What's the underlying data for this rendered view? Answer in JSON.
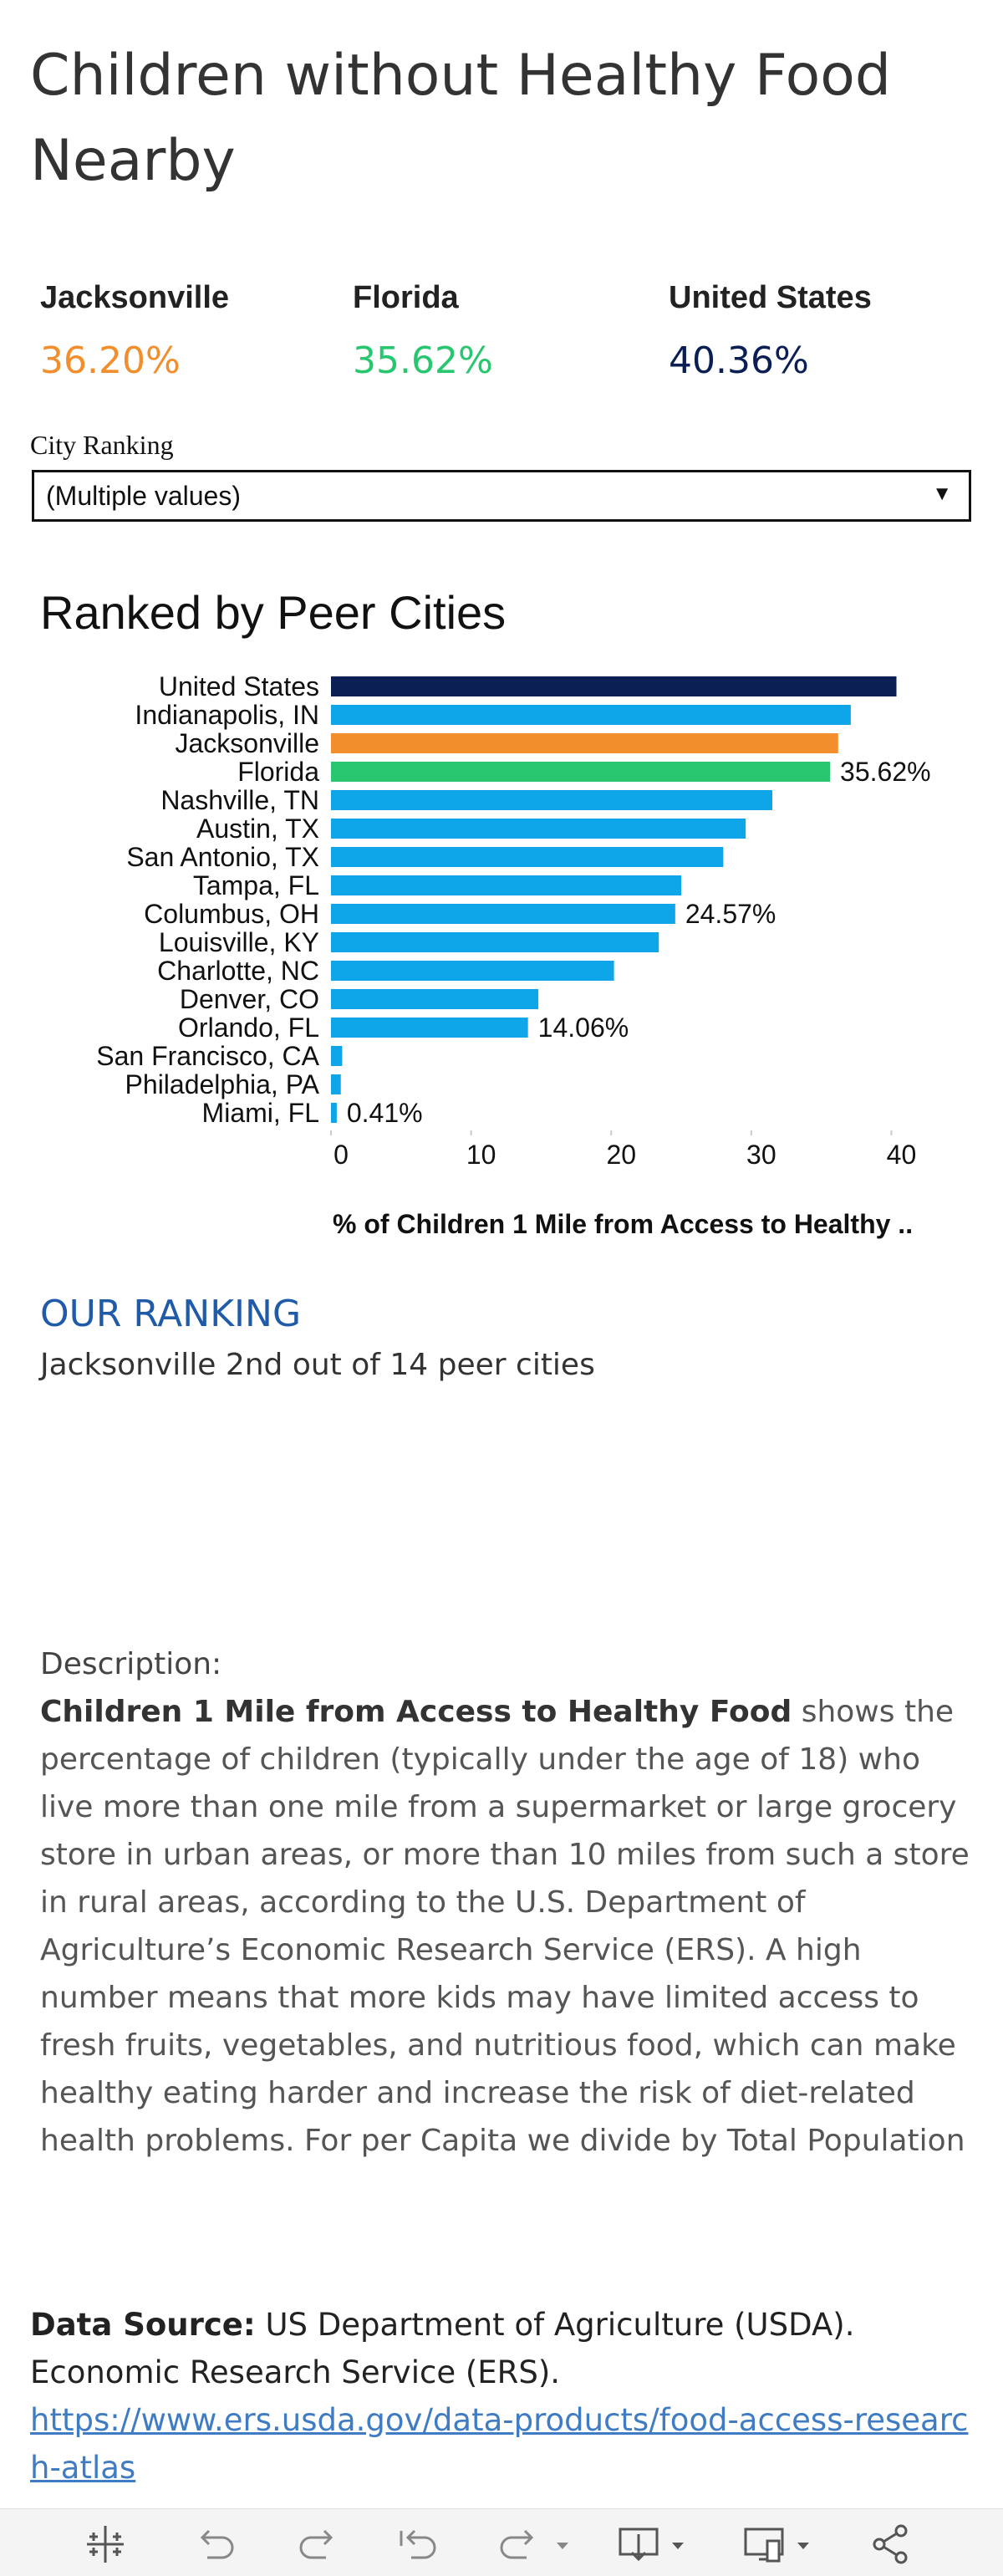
{
  "title": "Children without Healthy Food Nearby",
  "stats": [
    {
      "label": "Jacksonville",
      "value": "36.20%",
      "color": "#f28e2b"
    },
    {
      "label": "Florida",
      "value": "35.62%",
      "color": "#28c76f"
    },
    {
      "label": "United States",
      "value": "40.36%",
      "color": "#0b1f54"
    }
  ],
  "filter": {
    "label": "City Ranking",
    "value": "(Multiple values)"
  },
  "chart_title": "Ranked by Peer Cities",
  "chart_data": {
    "type": "bar",
    "orientation": "horizontal",
    "categories": [
      "United States",
      "Indianapolis, IN",
      "Jacksonville",
      "Florida",
      "Nashville, TN",
      "Austin, TX",
      "San Antonio, TX",
      "Tampa, FL",
      "Columbus, OH",
      "Louisville, KY",
      "Charlotte, NC",
      "Denver, CO",
      "Orlando, FL",
      "San Francisco, CA",
      "Philadelphia, PA",
      "Miami, FL"
    ],
    "values": [
      40.36,
      37.1,
      36.2,
      35.62,
      31.5,
      29.6,
      28.0,
      25.0,
      24.57,
      23.4,
      20.2,
      14.8,
      14.06,
      0.8,
      0.7,
      0.41
    ],
    "colors": [
      "#0b1f54",
      "#0ea5e9",
      "#f28e2b",
      "#28c76f",
      "#0ea5e9",
      "#0ea5e9",
      "#0ea5e9",
      "#0ea5e9",
      "#0ea5e9",
      "#0ea5e9",
      "#0ea5e9",
      "#0ea5e9",
      "#0ea5e9",
      "#0ea5e9",
      "#0ea5e9",
      "#0ea5e9"
    ],
    "data_labels": {
      "Florida": "35.62%",
      "Columbus, OH": "24.57%",
      "Orlando, FL": "14.06%",
      "Miami, FL": "0.41%"
    },
    "xticks": [
      0,
      10,
      20,
      30,
      40
    ],
    "xlim": [
      0,
      42
    ],
    "xlabel": "% of Children 1 Mile from Access to Healthy ..",
    "ylabel": ""
  },
  "ranking": {
    "heading": "OUR RANKING",
    "text": "Jacksonville 2nd out of 14 peer cities"
  },
  "description": {
    "heading": "Description:",
    "bold": "Children 1 Mile from Access to Healthy Food",
    "body": " shows the percentage of children (typically under the age of 18) who live more than one mile from a supermarket or large grocery store in urban areas, or more than 10 miles from such a store in rural areas, according to the U.S. Department of Agriculture’s Economic Research Service (ERS). A high number means that more kids may have limited access to fresh fruits, vegetables, and nutritious food, which can make healthy eating harder and increase the risk of diet-related health problems. For per Capita we divide by Total Population"
  },
  "source": {
    "label": "Data Source:",
    "text": " US Department of Agriculture (USDA). Economic Research Service (ERS).",
    "link": "https://www.ers.usda.gov/data-products/food-access-research-atlas"
  },
  "toolbar": [
    {
      "icon": "tableau-logo-icon"
    },
    {
      "icon": "undo-icon"
    },
    {
      "icon": "redo-icon"
    },
    {
      "icon": "revert-icon"
    },
    {
      "icon": "refresh-icon"
    },
    {
      "icon": "download-icon"
    },
    {
      "icon": "device-layout-icon"
    },
    {
      "icon": "share-icon"
    }
  ]
}
